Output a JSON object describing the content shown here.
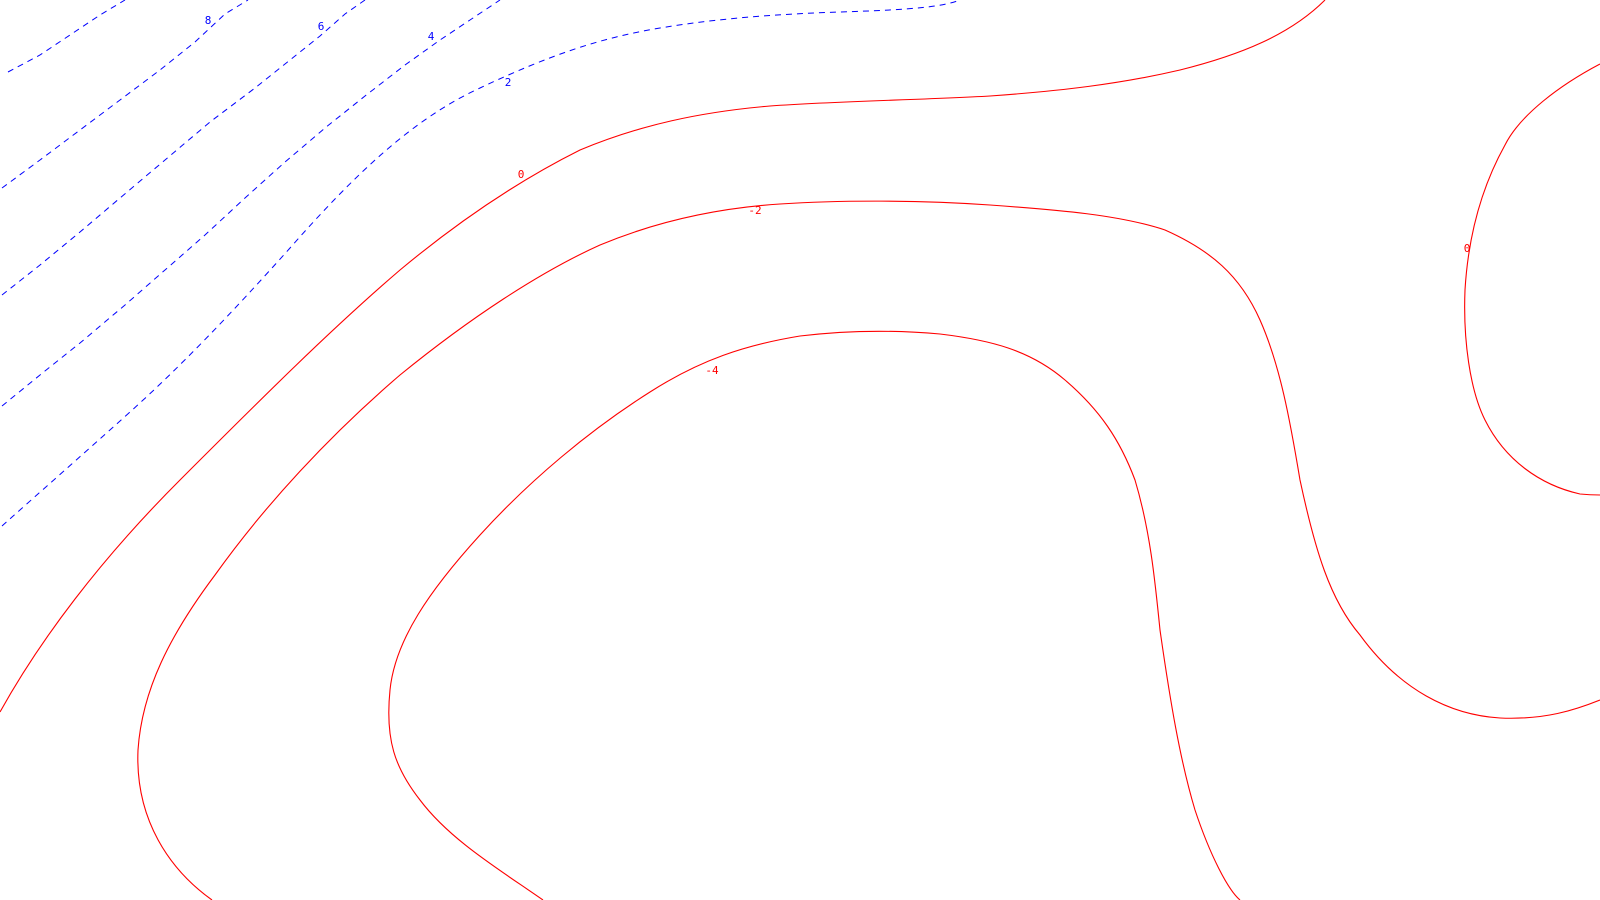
{
  "chart_data": {
    "type": "contour",
    "grid": false,
    "colors": {
      "positive": "#0000ff",
      "non_positive": "#ff0000",
      "background": "#ffffff"
    },
    "line_styles": {
      "positive": "dashed",
      "non_positive": "solid"
    },
    "contour_levels": [
      8,
      6,
      4,
      2,
      0,
      -2,
      -4,
      0
    ],
    "contour_labels": [
      "8",
      "6",
      "4",
      "2",
      "0",
      "-2",
      "-4",
      "0"
    ]
  }
}
